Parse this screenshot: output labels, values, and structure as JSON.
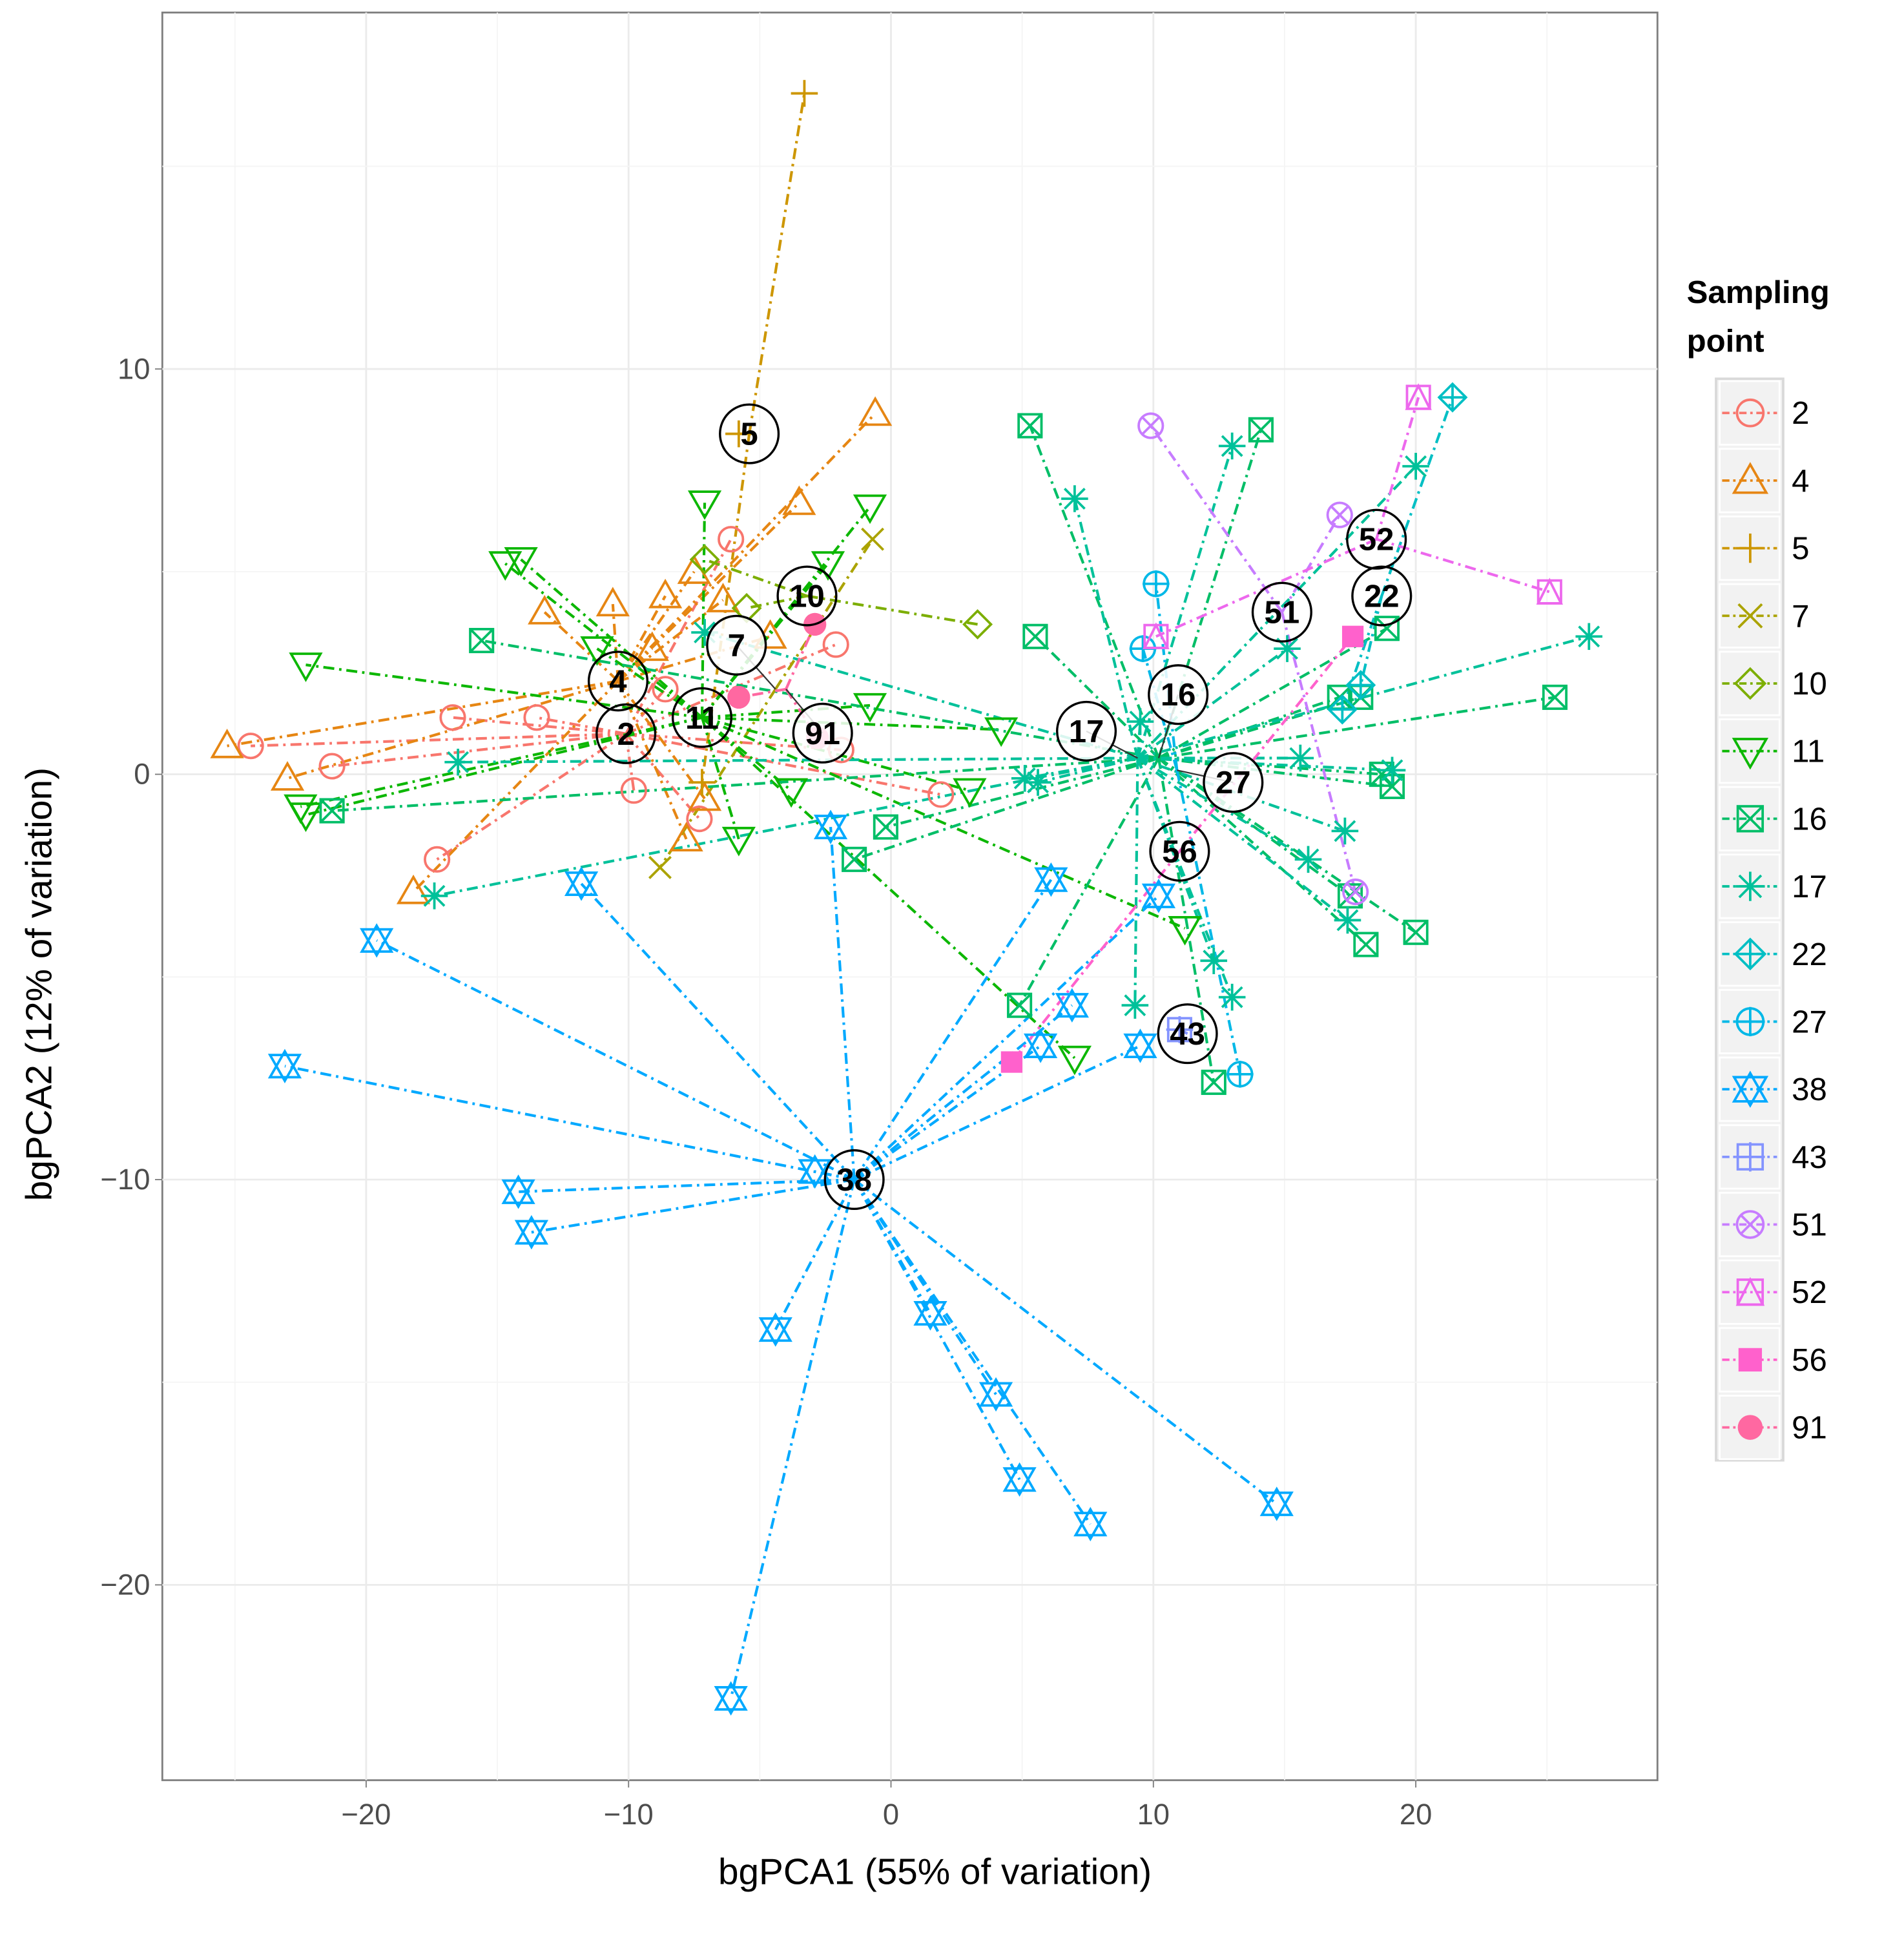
{
  "chart_data": {
    "type": "scatter",
    "title": "",
    "xlabel": "bgPCA1 (55% of variation)",
    "ylabel": "bgPCA2 (12% of variation)",
    "xlim": [
      -27.8,
      29.2
    ],
    "ylim": [
      -24.8,
      18.8
    ],
    "xticks": [
      -20,
      -10,
      0,
      10,
      20
    ],
    "yticks": [
      10,
      0,
      -10,
      -20
    ],
    "xtick_labels": [
      "−20",
      "−10",
      "0",
      "10",
      "20"
    ],
    "ytick_labels": [
      "10",
      "0",
      "−10",
      "−20"
    ],
    "grid": true,
    "legend": {
      "title": "Sampling point",
      "placement": "right"
    },
    "series": [
      {
        "name": "2",
        "color": "#F8766D",
        "shape": "circle",
        "centroid": [
          -10.1,
          1.0
        ],
        "points": [
          [
            -21.3,
            0.2
          ],
          [
            -17.3,
            -2.1
          ],
          [
            -16.7,
            1.4
          ],
          [
            -13.5,
            1.4
          ],
          [
            -9.8,
            -0.4
          ],
          [
            -8.6,
            2.1
          ],
          [
            -7.3,
            -1.1
          ],
          [
            -6.1,
            5.8
          ],
          [
            -2.1,
            3.2
          ],
          [
            1.9,
            -0.5
          ],
          [
            -1.9,
            0.6
          ],
          [
            -24.4,
            0.7
          ]
        ]
      },
      {
        "name": "4",
        "color": "#E68613",
        "shape": "triangle",
        "centroid": [
          -10.4,
          2.3
        ],
        "points": [
          [
            -25.3,
            0.7
          ],
          [
            -23,
            -0.1
          ],
          [
            -18.2,
            -2.9
          ],
          [
            -13.2,
            4.0
          ],
          [
            -10.6,
            4.2
          ],
          [
            -8.6,
            4.4
          ],
          [
            -7.5,
            5.0
          ],
          [
            -6.4,
            4.3
          ],
          [
            -4.6,
            3.4
          ],
          [
            -3.5,
            6.7
          ],
          [
            -0.6,
            8.9
          ],
          [
            -7.1,
            -0.6
          ],
          [
            -7.8,
            -1.6
          ],
          [
            -9.1,
            3.1
          ]
        ]
      },
      {
        "name": "5",
        "color": "#CD9600",
        "shape": "plus",
        "centroid": [
          -5.4,
          8.4
        ],
        "points": [
          [
            -3.3,
            16.8
          ],
          [
            -5.8,
            8.4
          ],
          [
            -7.2,
            -0.2
          ]
        ]
      },
      {
        "name": "7",
        "color": "#ABA300",
        "shape": "cross",
        "centroid": [
          -4.4,
          2.1
        ],
        "points": [
          [
            -8.8,
            -2.3
          ],
          [
            -0.7,
            5.8
          ]
        ]
      },
      {
        "name": "10",
        "color": "#7CAE00",
        "shape": "diamond",
        "centroid": [
          -3.2,
          4.4
        ],
        "points": [
          [
            3.3,
            3.7
          ],
          [
            -5.5,
            4.1
          ],
          [
            -7.1,
            5.3
          ]
        ]
      },
      {
        "name": "11",
        "color": "#0CB702",
        "shape": "down-triangle",
        "centroid": [
          -7.2,
          1.4
        ],
        "points": [
          [
            -22.3,
            2.7
          ],
          [
            -22.5,
            -0.8
          ],
          [
            -22.3,
            -1.0
          ],
          [
            -14.7,
            5.2
          ],
          [
            -14.1,
            5.3
          ],
          [
            -11.2,
            3.1
          ],
          [
            -7.1,
            6.7
          ],
          [
            -0.8,
            6.6
          ],
          [
            -2.4,
            5.2
          ],
          [
            -0.8,
            1.7
          ],
          [
            4.2,
            1.1
          ],
          [
            3.0,
            -0.4
          ],
          [
            -3.8,
            -0.4
          ],
          [
            -5.8,
            -1.6
          ],
          [
            11.2,
            -3.8
          ],
          [
            7.0,
            -7.0
          ]
        ]
      },
      {
        "name": "16",
        "color": "#00BE67",
        "shape": "square-cross",
        "centroid": [
          10.2,
          0.4
        ],
        "points": [
          [
            -15.6,
            3.3
          ],
          [
            -21.3,
            -0.9
          ],
          [
            -1.4,
            -2.1
          ],
          [
            -0.2,
            -1.3
          ],
          [
            4.9,
            -5.7
          ],
          [
            5.3,
            8.6
          ],
          [
            5.5,
            3.4
          ],
          [
            14.1,
            8.5
          ],
          [
            12.3,
            -7.6
          ],
          [
            17.1,
            1.9
          ],
          [
            17.9,
            1.9
          ],
          [
            18.7,
            0.0
          ],
          [
            19.1,
            -0.3
          ],
          [
            18.9,
            3.6
          ],
          [
            25.3,
            1.9
          ],
          [
            20.0,
            -3.9
          ],
          [
            18.1,
            -4.2
          ],
          [
            17.5,
            -3.0
          ]
        ]
      },
      {
        "name": "17",
        "color": "#00C19A",
        "shape": "asterisk",
        "centroid": [
          9.4,
          0.4
        ],
        "points": [
          [
            -17.4,
            -3.0
          ],
          [
            -16.5,
            0.3
          ],
          [
            -7.1,
            3.5
          ],
          [
            5.1,
            -0.1
          ],
          [
            5.6,
            -0.2
          ],
          [
            7.0,
            6.8
          ],
          [
            9.3,
            -5.7
          ],
          [
            13.0,
            8.1
          ],
          [
            12.3,
            -4.6
          ],
          [
            13.0,
            -5.5
          ],
          [
            15.1,
            3.1
          ],
          [
            15.6,
            0.4
          ],
          [
            15.9,
            -2.1
          ],
          [
            17.3,
            -1.4
          ],
          [
            17.4,
            -3.6
          ],
          [
            20.0,
            7.6
          ],
          [
            26.6,
            3.4
          ],
          [
            19.1,
            0.1
          ],
          [
            9.5,
            1.3
          ]
        ]
      },
      {
        "name": "22",
        "color": "#00BFC4",
        "shape": "diamond-plus",
        "centroid": [
          18.7,
          4.4
        ],
        "points": [
          [
            21.4,
            9.3
          ],
          [
            17.9,
            2.2
          ],
          [
            17.2,
            1.6
          ]
        ]
      },
      {
        "name": "27",
        "color": "#00B8E7",
        "shape": "circle-plus",
        "centroid": [
          10.9,
          0.1
        ],
        "points": [
          [
            10.1,
            4.7
          ],
          [
            9.6,
            3.1
          ],
          [
            13.3,
            -7.4
          ]
        ]
      },
      {
        "name": "38",
        "color": "#00A9FF",
        "shape": "star-david",
        "centroid": [
          -1.4,
          -10.0
        ],
        "points": [
          [
            -23.1,
            -7.2
          ],
          [
            -19.6,
            -4.1
          ],
          [
            -11.8,
            -2.7
          ],
          [
            -14.2,
            -10.3
          ],
          [
            -13.7,
            -11.3
          ],
          [
            -6.1,
            -22.8
          ],
          [
            -4.4,
            -13.7
          ],
          [
            1.5,
            -13.3
          ],
          [
            4.0,
            -15.3
          ],
          [
            4.9,
            -17.4
          ],
          [
            7.6,
            -18.5
          ],
          [
            14.7,
            -18.0
          ],
          [
            -2.3,
            -1.3
          ],
          [
            6.1,
            -2.6
          ],
          [
            6.9,
            -5.7
          ],
          [
            5.7,
            -6.7
          ],
          [
            9.5,
            -6.7
          ],
          [
            10.2,
            -3.0
          ],
          [
            -2.9,
            -9.8
          ]
        ]
      },
      {
        "name": "43",
        "color": "#8494FF",
        "shape": "square-plus",
        "centroid": [
          11.3,
          -6.4
        ],
        "points": [
          [
            11.0,
            -6.3
          ]
        ]
      },
      {
        "name": "51",
        "color": "#C77CFF",
        "shape": "circle-x",
        "centroid": [
          14.9,
          4.0
        ],
        "points": [
          [
            9.9,
            8.6
          ],
          [
            17.1,
            6.4
          ],
          [
            17.7,
            -2.9
          ]
        ]
      },
      {
        "name": "52",
        "color": "#ED68ED",
        "shape": "square-triangle",
        "centroid": [
          18.5,
          5.8
        ],
        "points": [
          [
            20.1,
            9.3
          ],
          [
            25.1,
            4.5
          ],
          [
            10.1,
            3.4
          ]
        ]
      },
      {
        "name": "56",
        "color": "#FF61CC",
        "shape": "filled-square",
        "centroid": [
          11.0,
          -1.9
        ],
        "points": [
          [
            17.6,
            3.4
          ],
          [
            4.6,
            -7.1
          ]
        ]
      },
      {
        "name": "91",
        "color": "#FF68A1",
        "shape": "filled-circle",
        "centroid": [
          -4.0,
          2.1
        ],
        "points": [
          [
            -5.8,
            1.9
          ],
          [
            -2.9,
            3.7
          ],
          [
            -2.8,
            0.9
          ]
        ]
      }
    ]
  }
}
